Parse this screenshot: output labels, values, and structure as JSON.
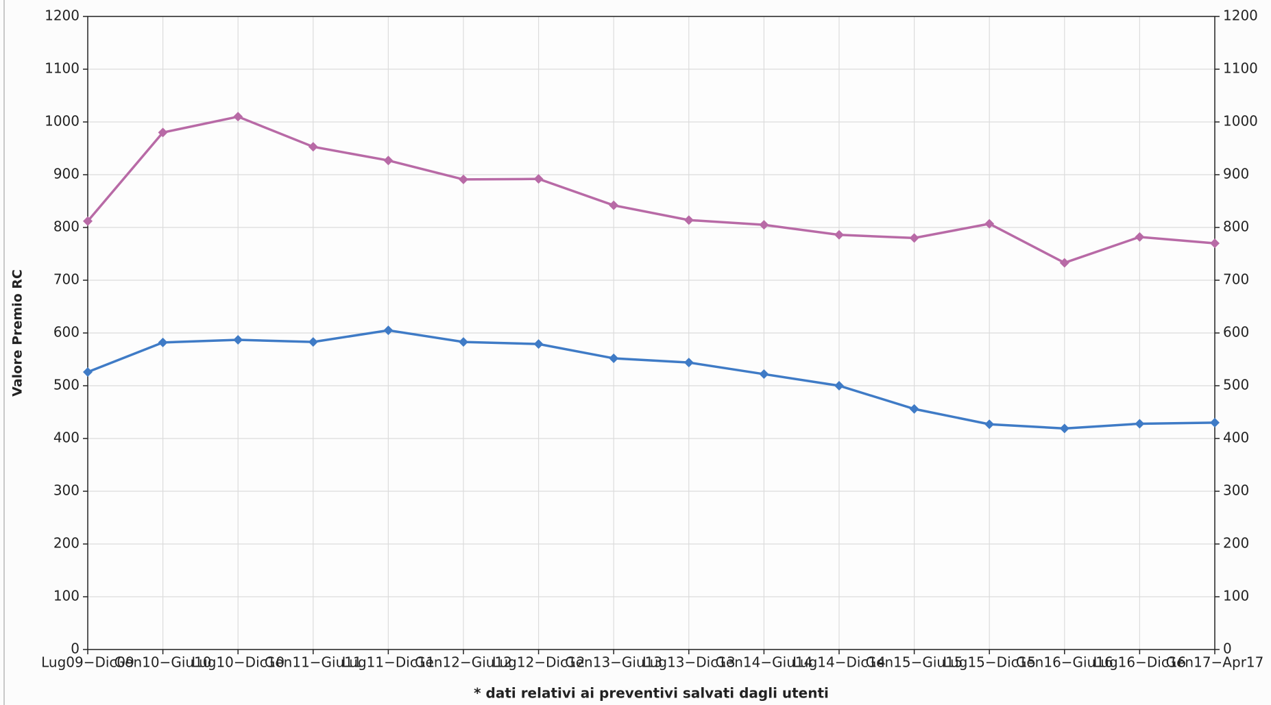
{
  "chart_data": {
    "type": "line",
    "y_label": "Valore Premio RC",
    "x_label": "* dati relativi ai preventivi salvati dagli utenti",
    "categories": [
      "Lug09−Dic09",
      "Gen10−Giu10",
      "Lug10−Dic10",
      "Gen11−Giu11",
      "Lug11−Dic11",
      "Gen12−Giu12",
      "Lug12−Dic12",
      "Gen13−Giu13",
      "Lug13−Dic13",
      "Gen14−Giu14",
      "Lug14−Dic14",
      "Gen15−Giu15",
      "Lug15−Dic15",
      "Gen16−Giu16",
      "Lug16−Dic16",
      "Gen17−Apr17"
    ],
    "series": [
      {
        "color": "#b86aa6",
        "values": [
          812,
          980,
          1010,
          953,
          927,
          891,
          892,
          842,
          814,
          805,
          786,
          780,
          807,
          733,
          782,
          770
        ]
      },
      {
        "color": "#3f7bc6",
        "values": [
          526,
          582,
          587,
          583,
          605,
          583,
          579,
          552,
          544,
          522,
          500,
          456,
          427,
          419,
          428,
          430
        ]
      }
    ],
    "ylim": [
      0,
      1200
    ],
    "yticks": [
      0,
      100,
      200,
      300,
      400,
      500,
      600,
      700,
      800,
      900,
      1000,
      1100,
      1200
    ],
    "grid": true
  }
}
